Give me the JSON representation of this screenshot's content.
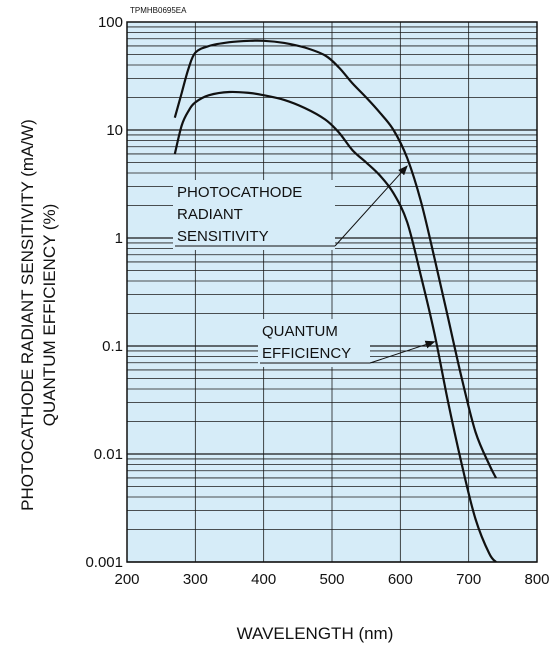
{
  "chart_data": {
    "type": "line",
    "code_label": "TPMHB0695EA",
    "xlabel": "WAVELENGTH (nm)",
    "ylabel_lines": [
      "PHOTOCATHODE RADIANT SENSITIVITY (mA/W)",
      "QUANTUM EFFICIENCY (%)"
    ],
    "xlim": [
      200,
      800
    ],
    "ylim": [
      0.001,
      100
    ],
    "yscale": "log",
    "grid": true,
    "background_color": "#d6ecf8",
    "line_color": "#111111",
    "x_ticks": [
      "200",
      "300",
      "400",
      "500",
      "600",
      "700",
      "800"
    ],
    "y_ticks": [
      "0.001",
      "0.01",
      "0.1",
      "1",
      "10",
      "100"
    ],
    "series": [
      {
        "key": "radiant",
        "x": [
          270,
          280,
          290,
          300,
          320,
          350,
          380,
          400,
          430,
          460,
          490,
          510,
          530,
          550,
          570,
          590,
          610,
          630,
          650,
          670,
          690,
          710,
          730,
          740
        ],
        "y": [
          13,
          22,
          37,
          52,
          60,
          65,
          67,
          67,
          64,
          58,
          49,
          38,
          27,
          20,
          14.5,
          10,
          5.5,
          2.2,
          0.65,
          0.18,
          0.05,
          0.016,
          0.008,
          0.006
        ]
      },
      {
        "key": "quantum",
        "x": [
          270,
          280,
          290,
          300,
          320,
          350,
          380,
          400,
          430,
          460,
          490,
          510,
          530,
          550,
          570,
          590,
          610,
          630,
          650,
          670,
          690,
          710,
          730,
          740
        ],
        "y": [
          6,
          11,
          15,
          18,
          21,
          22.5,
          22,
          21,
          19,
          16,
          12.5,
          9.5,
          6.5,
          5,
          3.8,
          2.6,
          1.4,
          0.45,
          0.13,
          0.03,
          0.008,
          0.0025,
          0.0012,
          0.001
        ]
      }
    ],
    "annotations": [
      {
        "key": "radiant",
        "lines": [
          "PHOTOCATHODE",
          "RADIANT",
          "SENSITIVITY"
        ],
        "arrow_to_x": 610
      },
      {
        "key": "quantum",
        "lines": [
          "QUANTUM",
          "EFFICIENCY"
        ],
        "arrow_to_x": 650
      }
    ]
  }
}
